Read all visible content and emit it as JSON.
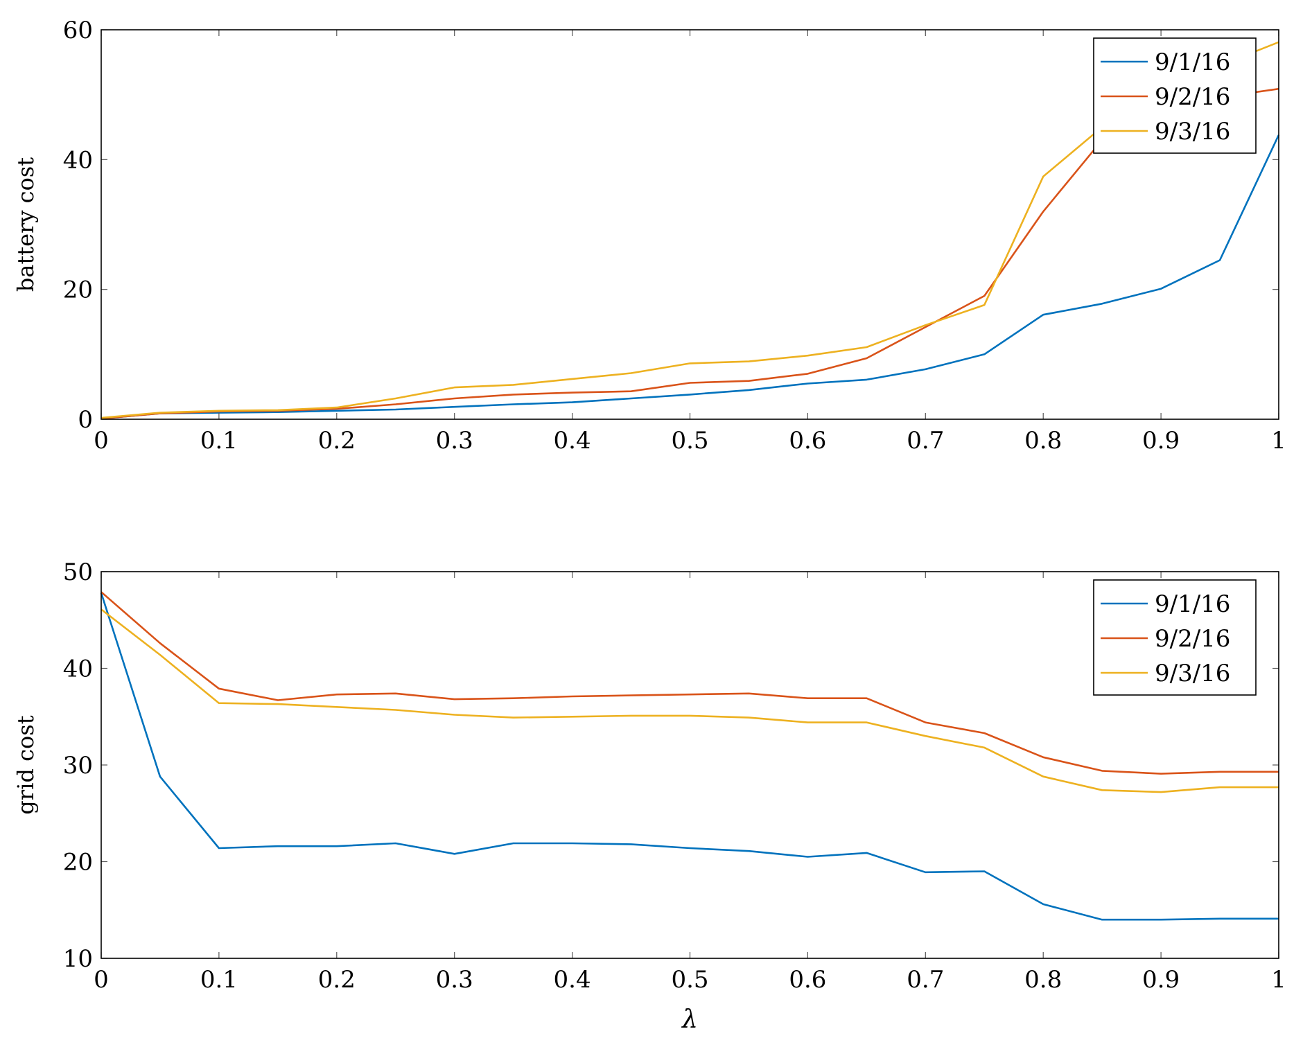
{
  "chart_data": [
    {
      "type": "line",
      "title": "",
      "xlabel": "",
      "ylabel": "battery cost",
      "xlim": [
        0,
        1
      ],
      "ylim": [
        0,
        60
      ],
      "xticks": [
        0,
        0.1,
        0.2,
        0.3,
        0.4,
        0.5,
        0.6,
        0.7,
        0.8,
        0.9,
        1
      ],
      "xtick_labels": [
        "0",
        "0.1",
        "0.2",
        "0.3",
        "0.4",
        "0.5",
        "0.6",
        "0.7",
        "0.8",
        "0.9",
        "1"
      ],
      "yticks": [
        0,
        20,
        40,
        60
      ],
      "ytick_labels": [
        "0",
        "20",
        "40",
        "60"
      ],
      "grid": false,
      "legend_position": "top-right",
      "x": [
        0,
        0.05,
        0.1,
        0.15,
        0.2,
        0.25,
        0.3,
        0.35,
        0.4,
        0.45,
        0.5,
        0.55,
        0.6,
        0.65,
        0.7,
        0.75,
        0.8,
        0.85,
        0.9,
        0.95,
        1
      ],
      "series": [
        {
          "name": "9/1/16",
          "color": "#0072bd",
          "values": [
            0.1,
            0.9,
            1.0,
            1.1,
            1.3,
            1.5,
            1.9,
            2.3,
            2.6,
            3.2,
            3.8,
            4.5,
            5.5,
            6.1,
            7.7,
            10.0,
            16.1,
            17.8,
            20.1,
            24.5,
            43.8
          ]
        },
        {
          "name": "9/2/16",
          "color": "#d95319",
          "values": [
            0.1,
            0.9,
            1.2,
            1.3,
            1.6,
            2.3,
            3.2,
            3.8,
            4.1,
            4.3,
            5.6,
            5.9,
            7.0,
            9.4,
            14.2,
            19.0,
            32.0,
            43.0,
            48.0,
            49.6,
            50.9
          ]
        },
        {
          "name": "9/3/16",
          "color": "#edb120",
          "values": [
            0.2,
            1.0,
            1.3,
            1.4,
            1.8,
            3.2,
            4.9,
            5.3,
            6.2,
            7.1,
            8.6,
            8.9,
            9.8,
            11.1,
            14.5,
            17.6,
            37.4,
            45.0,
            52.0,
            54.5,
            58.1
          ]
        }
      ]
    },
    {
      "type": "line",
      "title": "",
      "xlabel": "λ",
      "ylabel": "grid cost",
      "xlim": [
        0,
        1
      ],
      "ylim": [
        10,
        50
      ],
      "xticks": [
        0,
        0.1,
        0.2,
        0.3,
        0.4,
        0.5,
        0.6,
        0.7,
        0.8,
        0.9,
        1
      ],
      "xtick_labels": [
        "0",
        "0.1",
        "0.2",
        "0.3",
        "0.4",
        "0.5",
        "0.6",
        "0.7",
        "0.8",
        "0.9",
        "1"
      ],
      "yticks": [
        10,
        20,
        30,
        40,
        50
      ],
      "ytick_labels": [
        "10",
        "20",
        "30",
        "40",
        "50"
      ],
      "grid": false,
      "legend_position": "top-right",
      "x": [
        0,
        0.05,
        0.1,
        0.15,
        0.2,
        0.25,
        0.3,
        0.35,
        0.4,
        0.45,
        0.5,
        0.55,
        0.6,
        0.65,
        0.7,
        0.75,
        0.8,
        0.85,
        0.9,
        0.95,
        1
      ],
      "series": [
        {
          "name": "9/1/16",
          "color": "#0072bd",
          "values": [
            47.8,
            28.8,
            21.4,
            21.6,
            21.6,
            21.9,
            20.8,
            21.9,
            21.9,
            21.8,
            21.4,
            21.1,
            20.5,
            20.9,
            18.9,
            19.0,
            15.6,
            14.0,
            14.0,
            14.1,
            14.1
          ]
        },
        {
          "name": "9/2/16",
          "color": "#d95319",
          "values": [
            47.9,
            42.6,
            37.9,
            36.7,
            37.3,
            37.4,
            36.8,
            36.9,
            37.1,
            37.2,
            37.3,
            37.4,
            36.9,
            36.9,
            34.4,
            33.3,
            30.8,
            29.4,
            29.1,
            29.3,
            29.3
          ]
        },
        {
          "name": "9/3/16",
          "color": "#edb120",
          "values": [
            46.1,
            41.4,
            36.4,
            36.3,
            36.0,
            35.7,
            35.2,
            34.9,
            35.0,
            35.1,
            35.1,
            34.9,
            34.4,
            34.4,
            33.0,
            31.8,
            28.8,
            27.4,
            27.2,
            27.7,
            27.7
          ]
        }
      ]
    }
  ]
}
